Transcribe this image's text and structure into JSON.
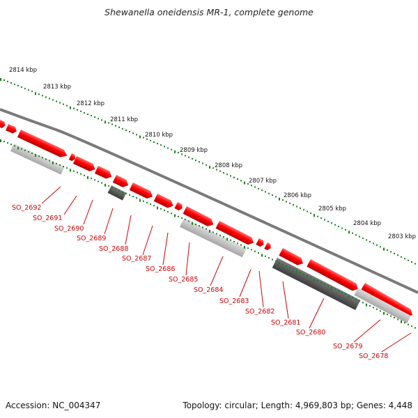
{
  "title": "Shewanella oneidensis MR-1, complete genome",
  "footer": {
    "accession": "Accession: NC_004347",
    "summary": "Topology: circular; Length: 4,969,803 bp; Genes: 4,448"
  },
  "ticks": [
    {
      "label": "2814 kbp",
      "kbp": 2814
    },
    {
      "label": "2813 kbp",
      "kbp": 2813
    },
    {
      "label": "2812 kbp",
      "kbp": 2812
    },
    {
      "label": "2811 kbp",
      "kbp": 2811
    },
    {
      "label": "2810 kbp",
      "kbp": 2810
    },
    {
      "label": "2809 kbp",
      "kbp": 2809
    },
    {
      "label": "2808 kbp",
      "kbp": 2808
    },
    {
      "label": "2807 kbp",
      "kbp": 2807
    },
    {
      "label": "2806 kbp",
      "kbp": 2806
    },
    {
      "label": "2805 kbp",
      "kbp": 2805
    },
    {
      "label": "2804 kbp",
      "kbp": 2804
    },
    {
      "label": "2803 kbp",
      "kbp": 2803
    }
  ],
  "genes": [
    {
      "label": "SO_2692"
    },
    {
      "label": "SO_2691"
    },
    {
      "label": "SO_2690"
    },
    {
      "label": "SO_2689"
    },
    {
      "label": "SO_2688"
    },
    {
      "label": "SO_2687"
    },
    {
      "label": "SO_2686"
    },
    {
      "label": "SO_2685"
    },
    {
      "label": "SO_2684"
    },
    {
      "label": "SO_2683"
    },
    {
      "label": "SO_2682"
    },
    {
      "label": "SO_2681"
    },
    {
      "label": "SO_2680"
    },
    {
      "label": "SO_2679"
    },
    {
      "label": "SO_2678"
    }
  ],
  "colors": {
    "backbone": "#7a7a7a",
    "gene_fill": "#ff0000",
    "light_feature": "#bdbdbd",
    "dark_feature": "#555555",
    "tick": "#1a7f1a",
    "label": "#d40000"
  }
}
